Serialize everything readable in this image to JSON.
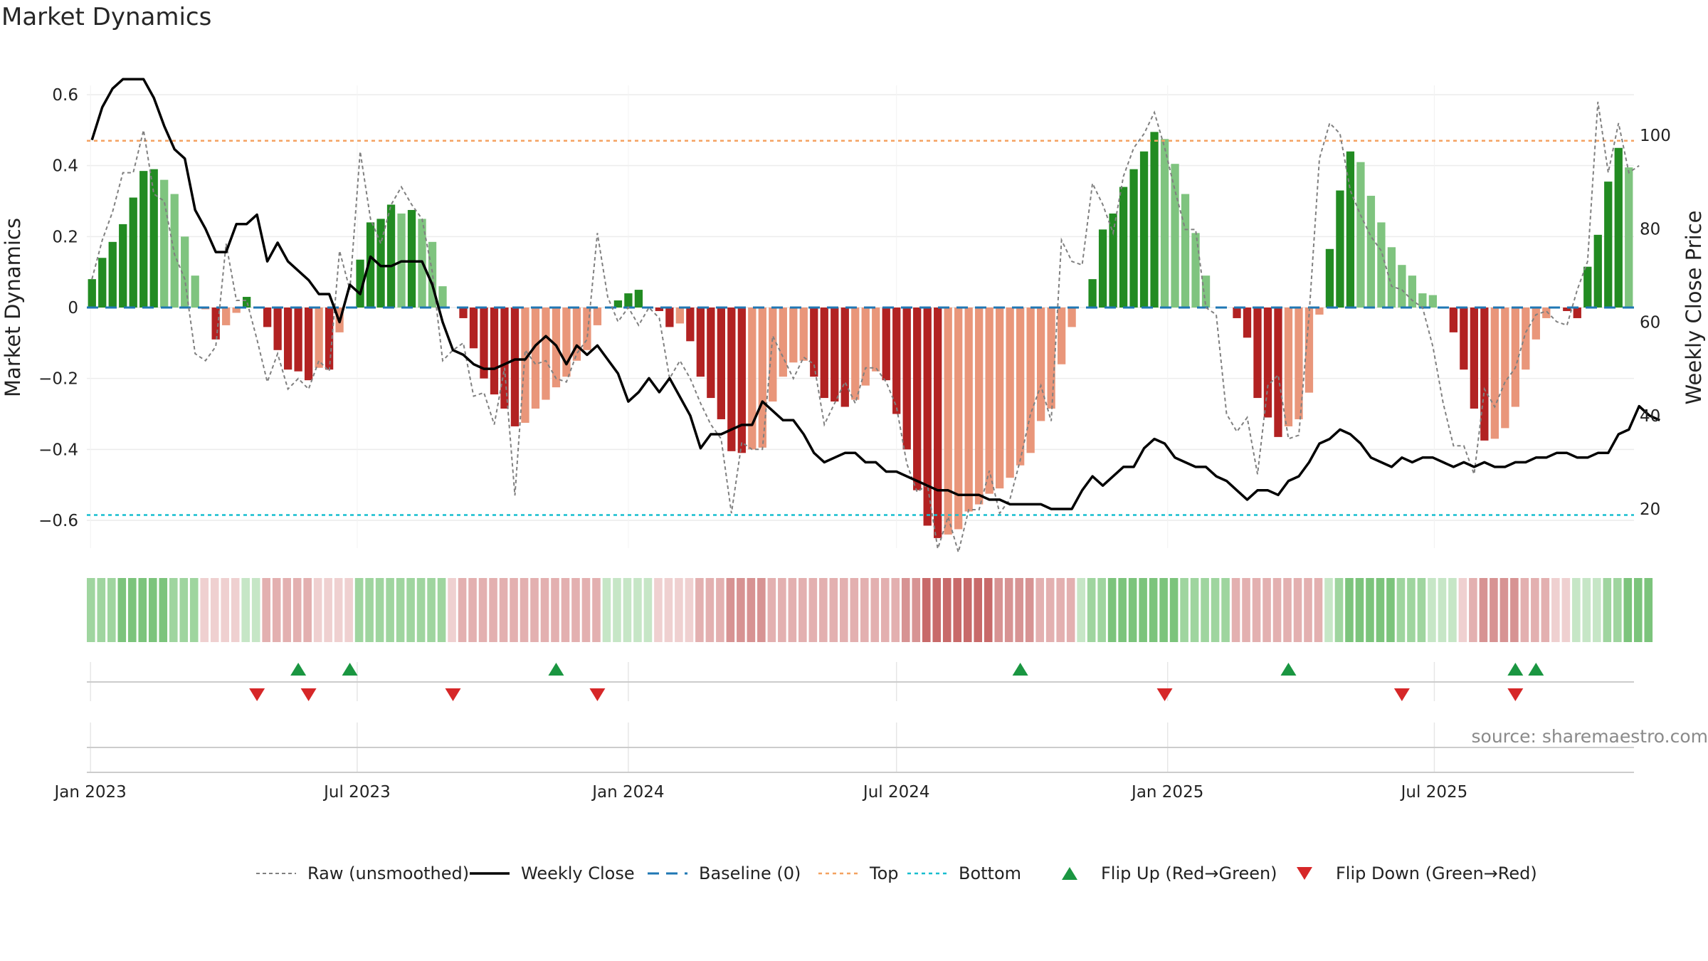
{
  "title": "Market Dynamics",
  "source": "source: sharemaestro.com",
  "colors": {
    "green": "#228b22",
    "green_light": "#7fc47f",
    "red": "#b22222",
    "red_light": "#e9967a",
    "close": "#000000",
    "raw": "#808080",
    "baseline": "#1f77b4",
    "top": "#f4a261",
    "bottom": "#17becf",
    "flip_up": "#1a9641",
    "flip_down": "#d62728"
  },
  "chart_data": {
    "type": "bar",
    "start_week": "2023-01-02",
    "ylabel_left": "Market Dynamics",
    "ylabel_right": "Weekly Close Price",
    "ylim_left": [
      -0.7,
      0.7
    ],
    "ylim_right": [
      5,
      120
    ],
    "yticks_left": [
      "0.6",
      "0.4",
      "0.2",
      "0",
      "−0.2",
      "−0.4",
      "−0.6"
    ],
    "yticks_right": [
      "100",
      "80",
      "60",
      "40",
      "20"
    ],
    "xticks": [
      "Jan 2023",
      "Jul 2023",
      "Jan 2024",
      "Jul 2024",
      "Jan 2025",
      "Jul 2025"
    ],
    "xtick_dates": [
      "2023-01-01",
      "2023-07-01",
      "2024-01-01",
      "2024-07-01",
      "2025-01-01",
      "2025-07-01"
    ],
    "top_level": 0.47,
    "bottom_level": -0.585,
    "baseline": 0,
    "momentum": [
      0.08,
      0.14,
      0.185,
      0.235,
      0.31,
      0.385,
      0.39,
      0.36,
      0.32,
      0.2,
      0.09,
      -0.005,
      -0.09,
      -0.05,
      -0.015,
      0.03,
      0.0,
      -0.055,
      -0.12,
      -0.175,
      -0.18,
      -0.205,
      -0.17,
      -0.175,
      -0.07,
      0.0,
      0.135,
      0.24,
      0.25,
      0.29,
      0.265,
      0.275,
      0.25,
      0.185,
      0.06,
      0.0,
      -0.03,
      -0.115,
      -0.2,
      -0.245,
      -0.285,
      -0.335,
      -0.325,
      -0.285,
      -0.26,
      -0.225,
      -0.195,
      -0.15,
      -0.12,
      -0.05,
      0.0,
      0.02,
      0.04,
      0.05,
      0.0,
      -0.01,
      -0.055,
      -0.045,
      -0.095,
      -0.195,
      -0.255,
      -0.315,
      -0.405,
      -0.41,
      -0.4,
      -0.395,
      -0.265,
      -0.195,
      -0.155,
      -0.15,
      -0.195,
      -0.255,
      -0.265,
      -0.28,
      -0.26,
      -0.22,
      -0.18,
      -0.205,
      -0.3,
      -0.4,
      -0.515,
      -0.615,
      -0.65,
      -0.64,
      -0.625,
      -0.575,
      -0.555,
      -0.525,
      -0.51,
      -0.48,
      -0.445,
      -0.41,
      -0.32,
      -0.285,
      -0.16,
      -0.055,
      0.0,
      0.08,
      0.22,
      0.265,
      0.34,
      0.39,
      0.44,
      0.495,
      0.475,
      0.405,
      0.32,
      0.21,
      0.09,
      0.0,
      0.0,
      -0.03,
      -0.085,
      -0.255,
      -0.31,
      -0.365,
      -0.335,
      -0.315,
      -0.24,
      -0.02,
      0.165,
      0.33,
      0.44,
      0.41,
      0.315,
      0.24,
      0.17,
      0.12,
      0.09,
      0.04,
      0.035,
      0.0,
      -0.07,
      -0.175,
      -0.285,
      -0.375,
      -0.37,
      -0.34,
      -0.28,
      -0.175,
      -0.09,
      -0.03,
      0.0,
      -0.01,
      -0.03,
      0.115,
      0.205,
      0.355,
      0.45,
      0.395
    ],
    "raw": [
      0.08,
      0.19,
      0.27,
      0.38,
      0.38,
      0.5,
      0.32,
      0.3,
      0.15,
      0.08,
      -0.13,
      -0.15,
      -0.11,
      0.18,
      0.02,
      0.02,
      -0.09,
      -0.21,
      -0.13,
      -0.23,
      -0.2,
      -0.23,
      -0.15,
      -0.18,
      0.16,
      0.05,
      0.44,
      0.25,
      0.18,
      0.29,
      0.34,
      0.29,
      0.25,
      0.1,
      -0.15,
      -0.12,
      -0.1,
      -0.25,
      -0.24,
      -0.33,
      -0.17,
      -0.53,
      -0.12,
      -0.16,
      -0.15,
      -0.2,
      -0.21,
      -0.13,
      -0.09,
      0.21,
      0.03,
      -0.04,
      0.0,
      -0.05,
      0.0,
      -0.03,
      -0.2,
      -0.15,
      -0.2,
      -0.27,
      -0.33,
      -0.37,
      -0.58,
      -0.38,
      -0.4,
      -0.4,
      -0.08,
      -0.14,
      -0.2,
      -0.14,
      -0.16,
      -0.33,
      -0.27,
      -0.21,
      -0.27,
      -0.17,
      -0.17,
      -0.21,
      -0.28,
      -0.44,
      -0.52,
      -0.5,
      -0.68,
      -0.59,
      -0.69,
      -0.57,
      -0.57,
      -0.46,
      -0.58,
      -0.54,
      -0.43,
      -0.3,
      -0.22,
      -0.32,
      0.19,
      0.13,
      0.12,
      0.35,
      0.29,
      0.21,
      0.37,
      0.45,
      0.49,
      0.55,
      0.45,
      0.33,
      0.22,
      0.22,
      0.0,
      -0.02,
      -0.3,
      -0.35,
      -0.31,
      -0.47,
      -0.22,
      -0.19,
      -0.37,
      -0.36,
      -0.02,
      0.42,
      0.52,
      0.49,
      0.33,
      0.26,
      0.2,
      0.16,
      0.06,
      0.05,
      0.02,
      0.0,
      -0.11,
      -0.27,
      -0.39,
      -0.39,
      -0.47,
      -0.23,
      -0.28,
      -0.21,
      -0.17,
      -0.07,
      -0.02,
      -0.01,
      -0.04,
      -0.05,
      0.05,
      0.13,
      0.58,
      0.38,
      0.52,
      0.38,
      0.4
    ],
    "close": [
      99,
      106,
      110,
      112,
      112,
      112,
      108,
      102,
      97,
      95,
      84,
      80,
      75,
      75,
      81,
      81,
      83,
      73,
      77,
      73,
      71,
      69,
      66,
      66,
      60,
      68,
      66,
      74,
      72,
      72,
      73,
      73,
      73,
      68,
      60,
      54,
      53,
      51,
      50,
      50,
      51,
      52,
      52,
      55,
      57,
      55,
      51,
      55,
      53,
      55,
      52,
      49,
      43,
      45,
      48,
      45,
      48,
      44,
      40,
      33,
      36,
      36,
      37,
      38,
      38,
      43,
      41,
      39,
      39,
      36,
      32,
      30,
      31,
      32,
      32,
      30,
      30,
      28,
      28,
      27,
      26,
      25,
      24,
      24,
      23,
      23,
      23,
      22,
      22,
      21,
      21,
      21,
      21,
      20,
      20,
      20,
      24,
      27,
      25,
      27,
      29,
      29,
      33,
      35,
      34,
      31,
      30,
      29,
      29,
      27,
      26,
      24,
      22,
      24,
      24,
      23,
      26,
      27,
      30,
      34,
      35,
      37,
      36,
      34,
      31,
      30,
      29,
      31,
      30,
      31,
      31,
      30,
      29,
      30,
      29,
      30,
      29,
      29,
      30,
      30,
      31,
      31,
      32,
      32,
      31,
      31,
      32,
      32,
      36,
      37,
      42,
      40,
      39
    ],
    "regimes": [
      2,
      2,
      2,
      3,
      3,
      3,
      3,
      3,
      2,
      2,
      2,
      -1,
      -1,
      -1,
      -1,
      1,
      1,
      -2,
      -2,
      -2,
      -2,
      -2,
      -1,
      -1,
      -1,
      -1,
      2,
      2,
      2,
      2,
      2,
      2,
      2,
      2,
      2,
      -1,
      -2,
      -2,
      -2,
      -2,
      -2,
      -2,
      -2,
      -2,
      -2,
      -2,
      -2,
      -2,
      -2,
      -2,
      1,
      1,
      1,
      1,
      1,
      -1,
      -1,
      -1,
      -1,
      -2,
      -2,
      -2,
      -3,
      -3,
      -3,
      -3,
      -2,
      -2,
      -2,
      -2,
      -2,
      -2,
      -2,
      -2,
      -2,
      -2,
      -2,
      -2,
      -2,
      -3,
      -3,
      -4,
      -4,
      -4,
      -4,
      -4,
      -4,
      -4,
      -3,
      -3,
      -3,
      -3,
      -2,
      -2,
      -2,
      -2,
      1,
      2,
      2,
      3,
      3,
      3,
      3,
      3,
      3,
      3,
      2,
      2,
      2,
      2,
      2,
      -2,
      -2,
      -2,
      -2,
      -2,
      -2,
      -2,
      -2,
      -2,
      1,
      2,
      3,
      3,
      3,
      3,
      3,
      2,
      2,
      2,
      1,
      1,
      1,
      -1,
      -2,
      -3,
      -3,
      -3,
      -3,
      -2,
      -2,
      -2,
      -1,
      -1,
      1,
      1,
      1,
      2,
      2,
      3,
      3,
      3
    ],
    "flip_up_dates": [
      "2023-05-22",
      "2023-06-26",
      "2023-11-13",
      "2024-09-23",
      "2025-03-24",
      "2025-08-25",
      "2025-09-08"
    ],
    "flip_down_dates": [
      "2023-04-24",
      "2023-05-29",
      "2023-09-04",
      "2023-12-11",
      "2024-12-30",
      "2025-06-09",
      "2025-08-25"
    ],
    "legend": [
      {
        "label": "Raw (unsmoothed)",
        "marker": "line-dotted"
      },
      {
        "label": "Weekly Close",
        "marker": "line-solid"
      },
      {
        "label": "Baseline (0)",
        "marker": "line-dashed"
      },
      {
        "label": "Top",
        "marker": "line-dotted-orange"
      },
      {
        "label": "Bottom",
        "marker": "line-dotted-cyan"
      },
      {
        "label": "Flip Up (Red→Green)",
        "marker": "triangle-up"
      },
      {
        "label": "Flip Down (Green→Red)",
        "marker": "triangle-down"
      }
    ],
    "legend_position": "bottom",
    "grid": true
  }
}
